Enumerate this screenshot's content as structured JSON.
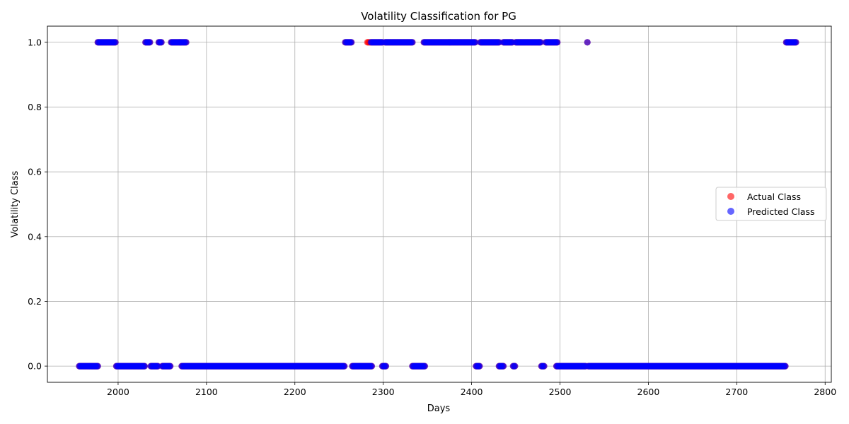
{
  "chart_data": {
    "type": "scatter",
    "title": "Volatility Classification for PG",
    "xlabel": "Days",
    "ylabel": "Volatility Class",
    "xlim": [
      1920,
      2807
    ],
    "ylim": [
      -0.05,
      1.05
    ],
    "x_ticks": [
      2000,
      2100,
      2200,
      2300,
      2400,
      2500,
      2600,
      2700,
      2800
    ],
    "y_ticks": [
      0.0,
      0.2,
      0.4,
      0.6,
      0.8,
      1.0
    ],
    "x_tick_labels": [
      "2000",
      "2100",
      "2200",
      "2300",
      "2400",
      "2500",
      "2600",
      "2700",
      "2800"
    ],
    "y_tick_labels": [
      "0.0",
      "0.2",
      "0.4",
      "0.6",
      "0.8",
      "1.0"
    ],
    "grid": true,
    "legend_position": "center-right",
    "series": [
      {
        "name": "Actual Class",
        "color": "#ff0000",
        "alpha": 0.6,
        "segments": [
          {
            "start": 1956,
            "end": 1977,
            "value": 0
          },
          {
            "start": 1977,
            "end": 1997,
            "value": 1
          },
          {
            "start": 1998,
            "end": 2030,
            "value": 0
          },
          {
            "start": 2031,
            "end": 2036,
            "value": 1
          },
          {
            "start": 2037,
            "end": 2045,
            "value": 0
          },
          {
            "start": 2046,
            "end": 2049,
            "value": 1
          },
          {
            "start": 2050,
            "end": 2059,
            "value": 0
          },
          {
            "start": 2060,
            "end": 2077,
            "value": 1
          },
          {
            "start": 2072,
            "end": 2256,
            "value": 0
          },
          {
            "start": 2257,
            "end": 2264,
            "value": 1
          },
          {
            "start": 2265,
            "end": 2287,
            "value": 0
          },
          {
            "start": 2282,
            "end": 2299,
            "value": 1
          },
          {
            "start": 2299,
            "end": 2303,
            "value": 0
          },
          {
            "start": 2302,
            "end": 2333,
            "value": 1
          },
          {
            "start": 2333,
            "end": 2347,
            "value": 0
          },
          {
            "start": 2346,
            "end": 2404,
            "value": 1
          },
          {
            "start": 2405,
            "end": 2409,
            "value": 0
          },
          {
            "start": 2410,
            "end": 2431,
            "value": 1
          },
          {
            "start": 2431,
            "end": 2436,
            "value": 0
          },
          {
            "start": 2436,
            "end": 2446,
            "value": 1
          },
          {
            "start": 2447,
            "end": 2449,
            "value": 0
          },
          {
            "start": 2450,
            "end": 2478,
            "value": 1
          },
          {
            "start": 2479,
            "end": 2482,
            "value": 0
          },
          {
            "start": 2484,
            "end": 2497,
            "value": 1
          },
          {
            "start": 2496,
            "end": 2529,
            "value": 0
          },
          {
            "start": 2531,
            "end": 2531,
            "value": 1
          },
          {
            "start": 2532,
            "end": 2755,
            "value": 0
          },
          {
            "start": 2756,
            "end": 2767,
            "value": 1
          }
        ]
      },
      {
        "name": "Predicted Class",
        "color": "#0000ff",
        "alpha": 0.6,
        "segments": [
          {
            "start": 1956,
            "end": 1977,
            "value": 0
          },
          {
            "start": 1977,
            "end": 1997,
            "value": 1
          },
          {
            "start": 1998,
            "end": 2030,
            "value": 0
          },
          {
            "start": 2031,
            "end": 2036,
            "value": 1
          },
          {
            "start": 2037,
            "end": 2045,
            "value": 0
          },
          {
            "start": 2046,
            "end": 2049,
            "value": 1
          },
          {
            "start": 2050,
            "end": 2059,
            "value": 0
          },
          {
            "start": 2060,
            "end": 2077,
            "value": 1
          },
          {
            "start": 2072,
            "end": 2256,
            "value": 0
          },
          {
            "start": 2257,
            "end": 2264,
            "value": 1
          },
          {
            "start": 2265,
            "end": 2287,
            "value": 0
          },
          {
            "start": 2286,
            "end": 2299,
            "value": 1
          },
          {
            "start": 2299,
            "end": 2303,
            "value": 0
          },
          {
            "start": 2302,
            "end": 2333,
            "value": 1
          },
          {
            "start": 2333,
            "end": 2347,
            "value": 0
          },
          {
            "start": 2346,
            "end": 2404,
            "value": 1
          },
          {
            "start": 2405,
            "end": 2409,
            "value": 0
          },
          {
            "start": 2410,
            "end": 2431,
            "value": 1
          },
          {
            "start": 2431,
            "end": 2436,
            "value": 0
          },
          {
            "start": 2436,
            "end": 2446,
            "value": 1
          },
          {
            "start": 2447,
            "end": 2449,
            "value": 0
          },
          {
            "start": 2450,
            "end": 2478,
            "value": 1
          },
          {
            "start": 2479,
            "end": 2482,
            "value": 0
          },
          {
            "start": 2484,
            "end": 2497,
            "value": 1
          },
          {
            "start": 2496,
            "end": 2529,
            "value": 0
          },
          {
            "start": 2531,
            "end": 2531,
            "value": 1
          },
          {
            "start": 2532,
            "end": 2755,
            "value": 0
          },
          {
            "start": 2756,
            "end": 2767,
            "value": 1
          }
        ]
      }
    ]
  }
}
